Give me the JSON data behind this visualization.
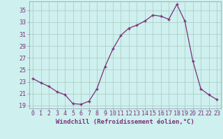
{
  "x": [
    0,
    1,
    2,
    3,
    4,
    5,
    6,
    7,
    8,
    9,
    10,
    11,
    12,
    13,
    14,
    15,
    16,
    17,
    18,
    19,
    20,
    21,
    22,
    23
  ],
  "y": [
    23.5,
    22.8,
    22.2,
    21.3,
    20.8,
    19.3,
    19.2,
    19.7,
    21.8,
    25.5,
    28.5,
    30.8,
    32.0,
    32.5,
    33.2,
    34.2,
    34.0,
    33.5,
    36.0,
    33.2,
    26.5,
    21.8,
    20.8,
    20.0
  ],
  "line_color": "#7b2f7b",
  "marker": "+",
  "bg_color": "#cef0ee",
  "grid_color": "#b0cec8",
  "xlabel": "Windchill (Refroidissement éolien,°C)",
  "yticks": [
    19,
    21,
    23,
    25,
    27,
    29,
    31,
    33,
    35
  ],
  "xtick_labels": [
    "0",
    "1",
    "2",
    "3",
    "4",
    "5",
    "6",
    "7",
    "8",
    "9",
    "10",
    "11",
    "12",
    "13",
    "14",
    "15",
    "16",
    "17",
    "18",
    "19",
    "20",
    "21",
    "22",
    "23"
  ],
  "xticks": [
    0,
    1,
    2,
    3,
    4,
    5,
    6,
    7,
    8,
    9,
    10,
    11,
    12,
    13,
    14,
    15,
    16,
    17,
    18,
    19,
    20,
    21,
    22,
    23
  ],
  "ylim": [
    18.5,
    36.5
  ],
  "xlim": [
    -0.5,
    23.5
  ],
  "xlabel_fontsize": 6.5,
  "tick_fontsize": 6,
  "label_color": "#7b2f7b"
}
